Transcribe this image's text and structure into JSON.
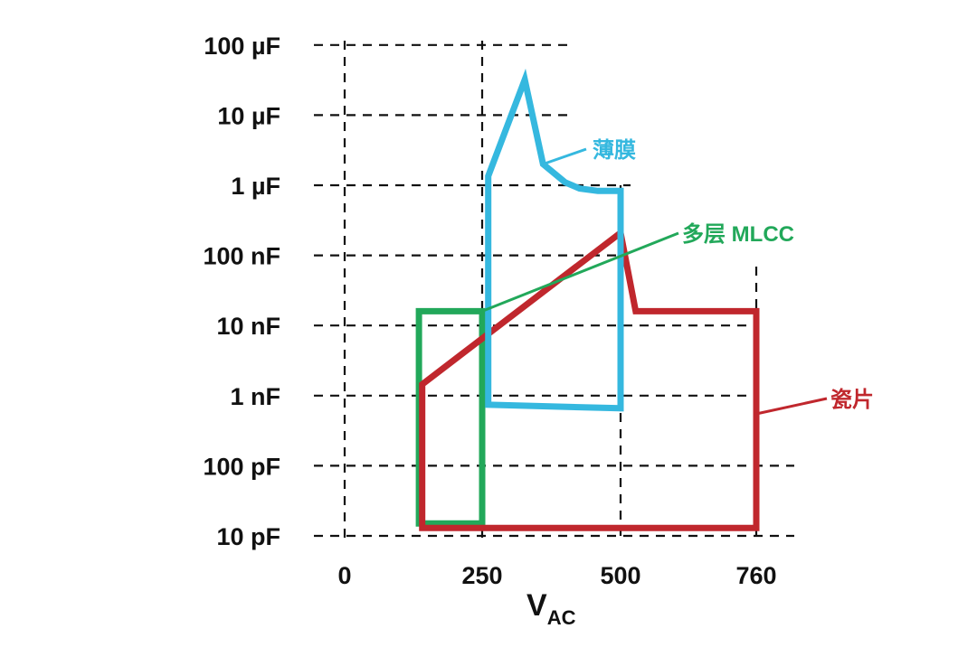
{
  "chart_data": {
    "type": "area",
    "title": "",
    "xlabel": "V",
    "xlabel_sub": "AC",
    "ylabel": "",
    "y_scale": "log",
    "grid": true,
    "x_ticks": [
      0,
      250,
      500,
      760
    ],
    "x_tick_labels": [
      "0",
      "250",
      "500",
      "760"
    ],
    "y_ticks_pF": [
      10,
      100,
      1000,
      10000,
      100000,
      1000000,
      10000000,
      100000000
    ],
    "y_tick_labels": [
      "10 pF",
      "100 pF",
      "1 nF",
      "10 nF",
      "100 nF",
      "1 µF",
      "10 µF",
      "100 µF"
    ],
    "series": [
      {
        "name": "多层 MLCC",
        "color": "#22a85a",
        "points": [
          [
            135,
            15
          ],
          [
            250,
            15
          ],
          [
            250,
            16000
          ],
          [
            135,
            16000
          ]
        ]
      },
      {
        "name": "瓷片",
        "color": "#c0272d",
        "points": [
          [
            141,
            13
          ],
          [
            141,
            1450
          ],
          [
            500,
            210000
          ],
          [
            529,
            16000
          ],
          [
            760,
            16000
          ],
          [
            760,
            13
          ]
        ]
      },
      {
        "name": "薄膜",
        "color": "#35b8df",
        "points": [
          [
            261,
            740
          ],
          [
            261,
            1350000
          ],
          [
            327,
            32000000
          ],
          [
            360,
            2000000
          ],
          [
            400,
            1100000
          ],
          [
            426,
            900000
          ],
          [
            459,
            830000
          ],
          [
            500,
            830000
          ],
          [
            500,
            660
          ]
        ]
      }
    ]
  }
}
